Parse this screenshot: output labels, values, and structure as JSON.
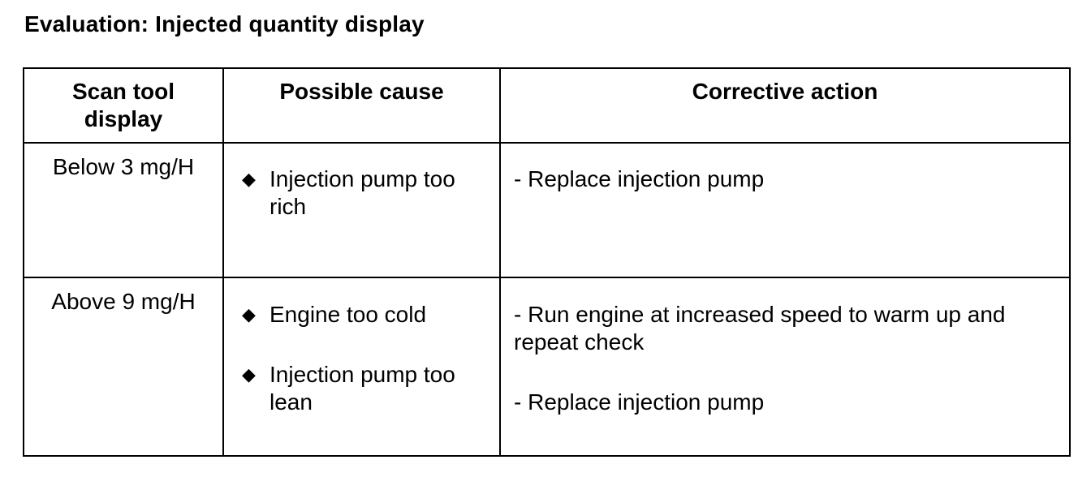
{
  "title": "Evaluation: Injected quantity display",
  "table": {
    "headers": {
      "display": "Scan tool display",
      "cause": "Possible cause",
      "action": "Corrective action"
    },
    "rows": [
      {
        "display": "Below 3 mg/H",
        "causes": [
          "Injection pump too rich"
        ],
        "actions": [
          "- Replace injection pump"
        ]
      },
      {
        "display": "Above 9 mg/H",
        "causes": [
          "Engine too cold",
          "Injection pump too lean"
        ],
        "actions": [
          "- Run engine at increased speed to warm up and repeat check",
          "- Replace injection pump"
        ]
      }
    ],
    "bullet_glyph": "◆"
  }
}
